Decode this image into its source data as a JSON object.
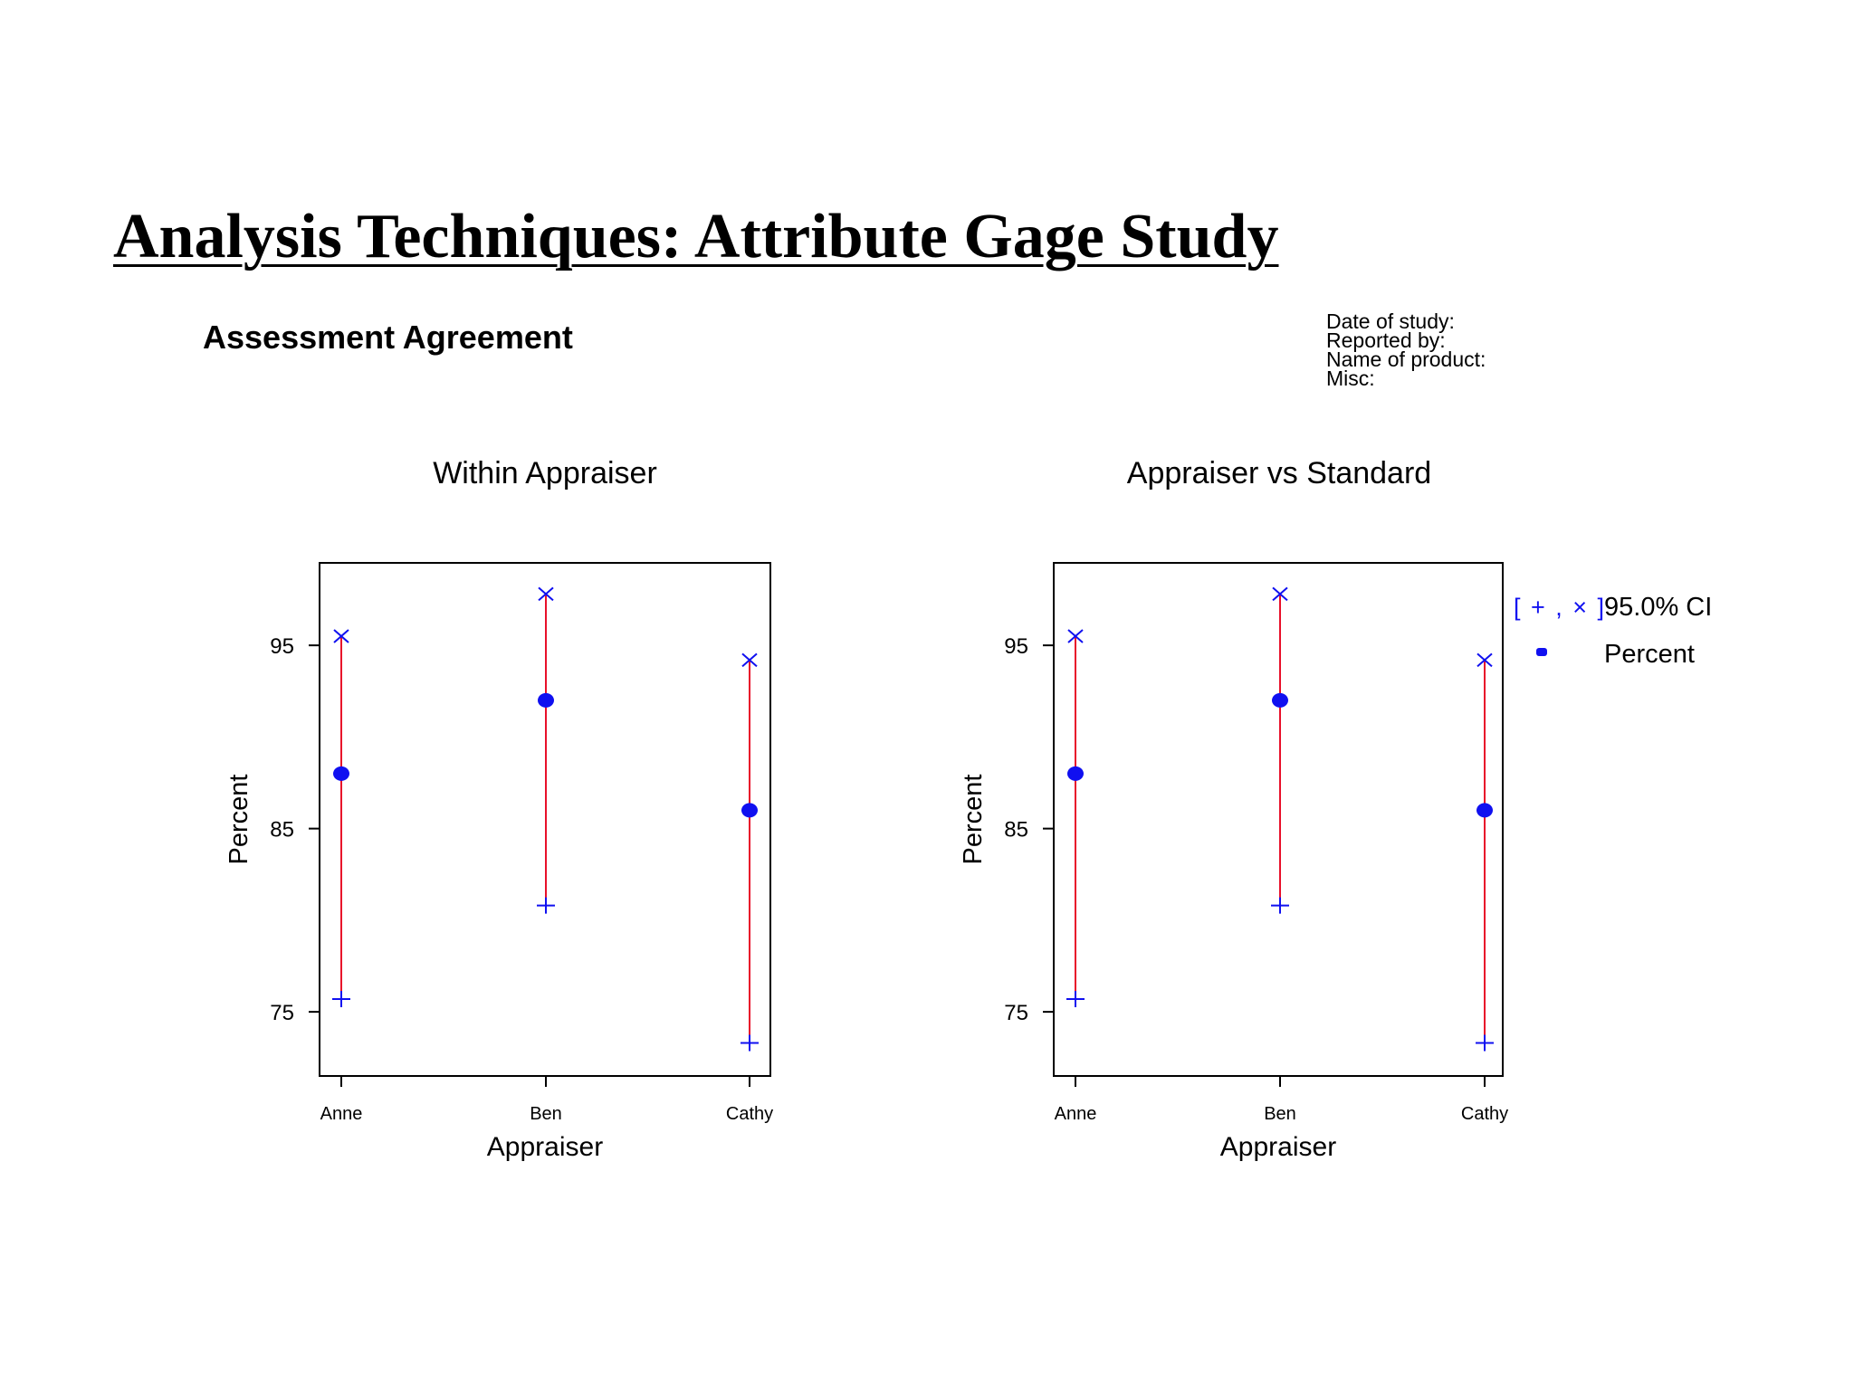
{
  "slide_title": "Analysis Techniques: Attribute Gage Study",
  "subtitle": "Assessment Agreement",
  "study_info": [
    "Date of study:",
    "Reported by:",
    "Name of product:",
    "Misc:"
  ],
  "colors": {
    "ci_line": "#e8102a",
    "marker": "#1010f0",
    "axis": "#000000"
  },
  "legend": {
    "ci_label": "95.0% CI",
    "point_label": "Percent",
    "ci_symbol": "[ + , × ]",
    "placement": "right"
  },
  "chart_data": [
    {
      "type": "scatter",
      "title": "Within Appraiser",
      "xlabel": "Appraiser",
      "ylabel": "Percent",
      "categories": [
        "Anne",
        "Ben",
        "Cathy"
      ],
      "ylim": [
        71.5,
        99.5
      ],
      "yticks": [
        75,
        85,
        95
      ],
      "grid": false,
      "series": [
        {
          "name": "Percent",
          "values": [
            88,
            92,
            86
          ]
        },
        {
          "name": "95.0% CI",
          "lower": [
            75.7,
            80.8,
            73.3
          ],
          "upper": [
            95.5,
            97.8,
            94.2
          ]
        }
      ]
    },
    {
      "type": "scatter",
      "title": "Appraiser vs Standard",
      "xlabel": "Appraiser",
      "ylabel": "Percent",
      "categories": [
        "Anne",
        "Ben",
        "Cathy"
      ],
      "ylim": [
        71.5,
        99.5
      ],
      "yticks": [
        75,
        85,
        95
      ],
      "grid": false,
      "series": [
        {
          "name": "Percent",
          "values": [
            88,
            92,
            86
          ]
        },
        {
          "name": "95.0% CI",
          "lower": [
            75.7,
            80.8,
            73.3
          ],
          "upper": [
            95.5,
            97.8,
            94.2
          ]
        }
      ]
    }
  ]
}
